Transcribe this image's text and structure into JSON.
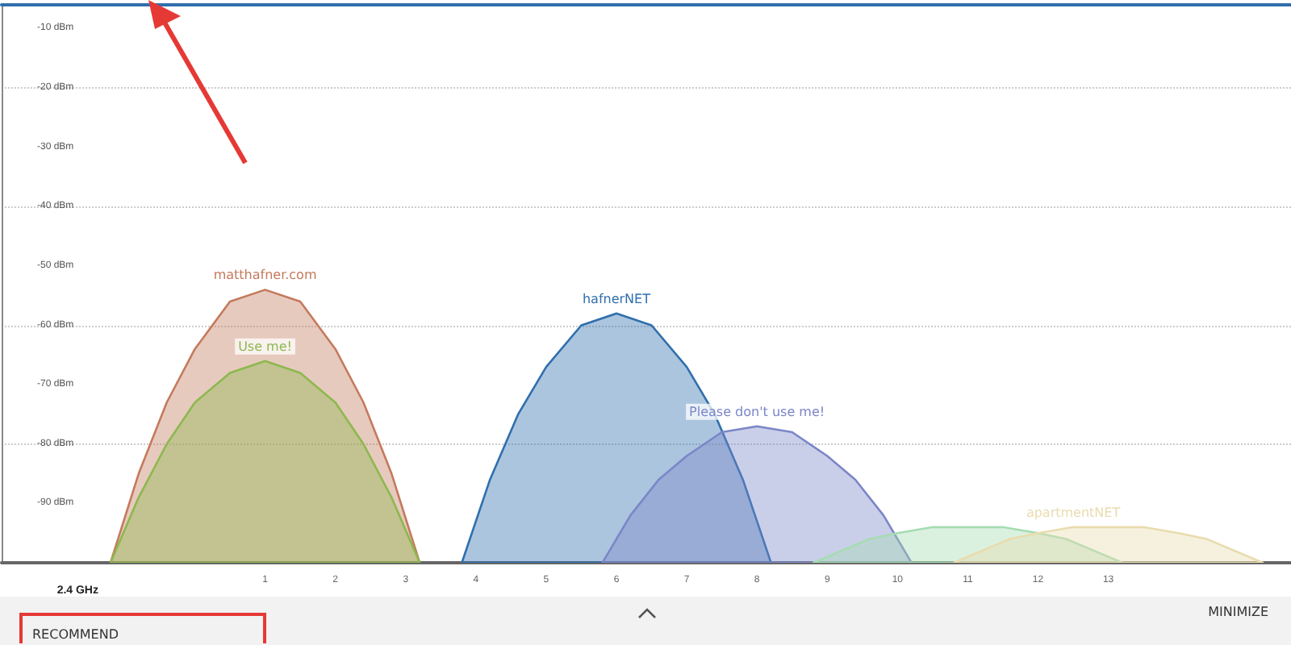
{
  "chart_data": {
    "type": "area",
    "xlabel": "2.4 GHz",
    "xlim": [
      -2.75,
      15.6
    ],
    "xticks": [
      1,
      2,
      3,
      4,
      5,
      6,
      7,
      8,
      9,
      10,
      11,
      12,
      13
    ],
    "ylim": [
      -100,
      -6
    ],
    "yticks": [
      {
        "value": -10,
        "label": "-10 dBm"
      },
      {
        "value": -20,
        "label": "-20 dBm"
      },
      {
        "value": -30,
        "label": "-30 dBm"
      },
      {
        "value": -40,
        "label": "-40 dBm"
      },
      {
        "value": -50,
        "label": "-50 dBm"
      },
      {
        "value": -60,
        "label": "-60 dBm"
      },
      {
        "value": -70,
        "label": "-70 dBm"
      },
      {
        "value": -80,
        "label": "-80 dBm"
      },
      {
        "value": -90,
        "label": "-90 dBm"
      },
      {
        "value": -100,
        "label": null
      }
    ],
    "grid": "y",
    "line_style": "solid",
    "series": [
      {
        "name": "matthafner.com",
        "color": "#c47a5c",
        "x": [
          -1.2,
          -0.8,
          -0.4,
          0,
          0.5,
          1,
          1.5,
          2,
          2.4,
          2.8,
          3.2
        ],
        "values": [
          -100,
          -85,
          -73,
          -64,
          -56,
          -54,
          -56,
          -64,
          -73,
          -85,
          -100
        ]
      },
      {
        "name": "Use me!",
        "color": "#8db84e",
        "x": [
          -1.2,
          -0.8,
          -0.4,
          0,
          0.5,
          1,
          1.5,
          2,
          2.4,
          2.8,
          3.2
        ],
        "values": [
          -100,
          -89,
          -80,
          -73,
          -68,
          -66,
          -68,
          -73,
          -80,
          -89,
          -100
        ]
      },
      {
        "name": "hafnerNET",
        "color": "#2f6fad",
        "x": [
          3.8,
          4.2,
          4.6,
          5,
          5.5,
          6,
          6.5,
          7,
          7.4,
          7.8,
          8.2
        ],
        "values": [
          -100,
          -86,
          -75,
          -67,
          -60,
          -58,
          -60,
          -67,
          -75,
          -86,
          -100
        ]
      },
      {
        "name": "Please don't use me!",
        "color": "#7b86c8",
        "x": [
          5.8,
          6.2,
          6.6,
          7,
          7.5,
          8,
          8.5,
          9,
          9.4,
          9.8,
          10.2
        ],
        "values": [
          -100,
          -92,
          -86,
          -82,
          -78,
          -77,
          -78,
          -82,
          -86,
          -92,
          -100
        ]
      },
      {
        "color": "#a6dcb2",
        "x": [
          8.8,
          9.2,
          9.6,
          10,
          10.5,
          11,
          11.5,
          12,
          12.4,
          12.8,
          13.2
        ],
        "values": [
          -100,
          -98,
          -96,
          -95,
          -94,
          -94,
          -94,
          -95,
          -96,
          -98,
          -100
        ]
      },
      {
        "name": "apartmentNET",
        "color": "#e9dcae",
        "x": [
          10.8,
          11.2,
          11.6,
          12,
          12.5,
          13,
          13.5,
          14,
          14.4,
          14.8,
          15.2
        ],
        "values": [
          -100,
          -98,
          -96,
          -95,
          -94,
          -94,
          -94,
          -95,
          -96,
          -98,
          -100
        ]
      }
    ],
    "annotations": [
      "RECOMMEND",
      "MINIMIZE"
    ]
  }
}
